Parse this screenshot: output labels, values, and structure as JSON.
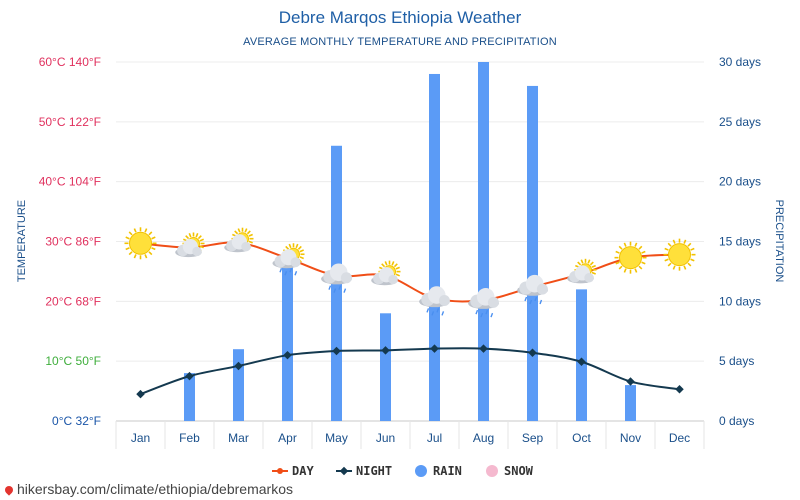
{
  "title": "Debre Marqos Ethiopia Weather",
  "subtitle": "AVERAGE MONTHLY TEMPERATURE AND PRECIPITATION",
  "footer": "hikersbay.com/climate/ethiopia/debremarkos",
  "chart_data": {
    "type": "bar",
    "categories": [
      "Jan",
      "Feb",
      "Mar",
      "Apr",
      "May",
      "Jun",
      "Jul",
      "Aug",
      "Sep",
      "Oct",
      "Nov",
      "Dec"
    ],
    "left_axis": {
      "label": "TEMPERATURE",
      "ticks": [
        {
          "value": 0,
          "label": "0°C 32°F",
          "color": "#1a55a8"
        },
        {
          "value": 10,
          "label": "10°C 50°F",
          "color": "#3fae3c"
        },
        {
          "value": 20,
          "label": "20°C 68°F",
          "color": "#e0315e"
        },
        {
          "value": 30,
          "label": "30°C 86°F",
          "color": "#e0315e"
        },
        {
          "value": 40,
          "label": "40°C 104°F",
          "color": "#e0315e"
        },
        {
          "value": 50,
          "label": "50°C 122°F",
          "color": "#e0315e"
        },
        {
          "value": 60,
          "label": "60°C 140°F",
          "color": "#e0315e"
        }
      ],
      "range": [
        0,
        60
      ]
    },
    "right_axis": {
      "label": "PRECIPITATION",
      "ticks": [
        "0 days",
        "5 days",
        "10 days",
        "15 days",
        "20 days",
        "25 days",
        "30 days"
      ],
      "range": [
        0,
        30
      ]
    },
    "series": [
      {
        "name": "DAY",
        "kind": "line",
        "axis": "left",
        "color": "#f04e17",
        "values": [
          29.7,
          29.0,
          29.8,
          27.2,
          24.3,
          24.3,
          20.5,
          20.2,
          22.4,
          24.6,
          27.3,
          27.8
        ]
      },
      {
        "name": "NIGHT",
        "kind": "line",
        "axis": "left",
        "color": "#14394f",
        "values": [
          4.5,
          7.5,
          9.2,
          11.0,
          11.7,
          11.8,
          12.1,
          12.1,
          11.4,
          9.9,
          6.6,
          5.3
        ]
      },
      {
        "name": "RAIN",
        "kind": "bar",
        "axis": "right",
        "color": "#5b9bf6",
        "values": [
          0,
          4,
          6,
          13,
          23,
          9,
          29,
          30,
          28,
          11,
          3,
          0
        ]
      },
      {
        "name": "SNOW",
        "kind": "bar",
        "axis": "right",
        "color": "#f5b9cf",
        "values": [
          0,
          0,
          0,
          0,
          0,
          0,
          0,
          0,
          0,
          0,
          0,
          0
        ]
      }
    ],
    "weather_icons": [
      "sunny",
      "partly-cloudy",
      "partly-cloudy",
      "partly-cloudy-rain",
      "cloudy-rain",
      "partly-cloudy",
      "cloudy-rain",
      "cloudy-rain",
      "cloudy-rain",
      "partly-cloudy",
      "sunny",
      "sunny"
    ],
    "legend": {
      "position": "bottom-center",
      "items": [
        "DAY",
        "NIGHT",
        "RAIN",
        "SNOW"
      ]
    },
    "grid": true
  }
}
